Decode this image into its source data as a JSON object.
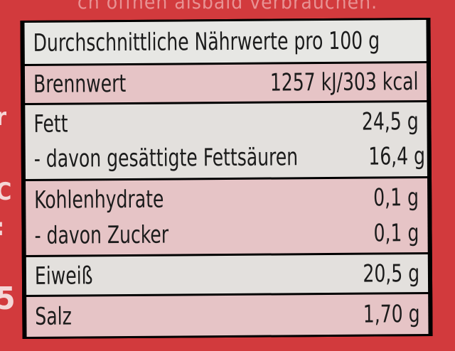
{
  "background_text": "ch öffnen alsbald verbrauchen.",
  "table": {
    "header": "Durchschnittliche Nährwerte pro 100 g",
    "rows": [
      {
        "label": "Brennwert",
        "value": "1257 kJ/303 kcal"
      },
      {
        "label": "Fett",
        "value": "24,5 g"
      },
      {
        "label": "-  davon gesättigte Fettsäuren",
        "value": "16,4 g"
      },
      {
        "label": "Kohlenhydrate",
        "value": "0,1 g"
      },
      {
        "label": "-  davon Zucker",
        "value": "0,1 g"
      },
      {
        "label": "Eiweiß",
        "value": "20,5 g"
      },
      {
        "label": "Salz",
        "value": "1,70 g"
      }
    ]
  },
  "colors": {
    "package_red": "#d23a3d",
    "row_pink": "#e6c4c6",
    "row_light": "#e3e0dd",
    "border": "#000000"
  }
}
